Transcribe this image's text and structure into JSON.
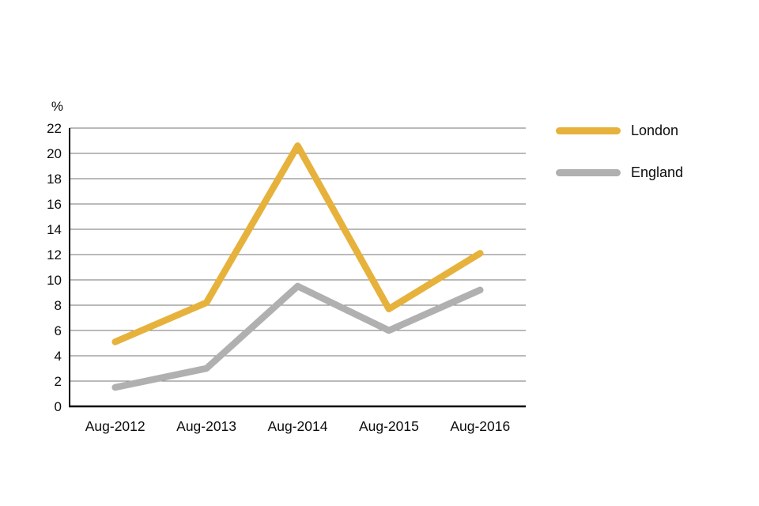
{
  "chart_data": {
    "type": "line",
    "x": [
      "Aug-2012",
      "Aug-2013",
      "Aug-2014",
      "Aug-2015",
      "Aug-2016"
    ],
    "series": [
      {
        "name": "London",
        "color": "#E6B23C",
        "values": [
          5.1,
          8.2,
          20.6,
          7.7,
          12.1
        ]
      },
      {
        "name": "England",
        "color": "#B0B0B0",
        "values": [
          1.5,
          3.0,
          9.5,
          6.0,
          9.2
        ]
      }
    ],
    "title": "",
    "xlabel": "",
    "ylabel": "%",
    "ylim": [
      0,
      22
    ],
    "ytick_step": 2,
    "grid": true,
    "legend_position": "right"
  },
  "colors": {
    "background": "#ffffff",
    "gridline": "#757575",
    "axis": "#000000",
    "text": "#0b0c0c"
  }
}
